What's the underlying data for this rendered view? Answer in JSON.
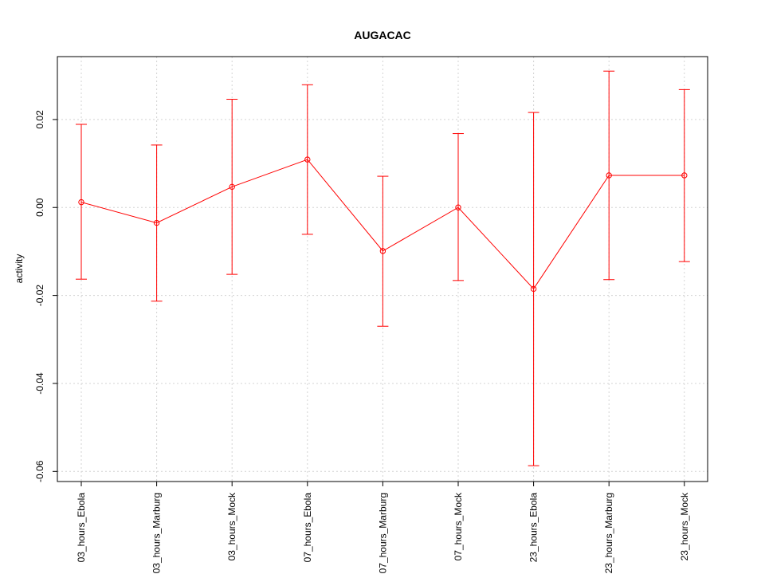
{
  "chart_data": {
    "type": "line",
    "title": "AUGACAC",
    "xlabel": "",
    "ylabel": "activity",
    "categories": [
      "03_hours_Ebola",
      "03_hours_Marburg",
      "03_hours_Mock",
      "07_hours_Ebola",
      "07_hours_Marburg",
      "07_hours_Mock",
      "23_hours_Ebola",
      "23_hours_Marburg",
      "23_hours_Mock"
    ],
    "series": [
      {
        "values": [
          0.0012,
          -0.0035,
          0.0047,
          0.0109,
          -0.0099,
          0.0,
          -0.0185,
          0.0073,
          0.0073
        ],
        "error_upper": [
          0.0189,
          0.0142,
          0.0246,
          0.0279,
          0.0071,
          0.0168,
          0.0216,
          0.031,
          0.0268
        ],
        "error_lower": [
          -0.0163,
          -0.0213,
          -0.0152,
          -0.0061,
          -0.027,
          -0.0166,
          -0.0587,
          -0.0164,
          -0.0123
        ]
      }
    ],
    "ylim": [
      -0.0623,
      0.0343
    ],
    "yticks": [
      -0.06,
      -0.04,
      -0.02,
      0.0,
      0.02
    ],
    "ytick_labels": [
      "-0.06",
      "-0.04",
      "-0.02",
      "0.00",
      "0.02"
    ],
    "grid": true,
    "colors": {
      "series": "#ff0000",
      "grid": "#d3d3d3",
      "axis": "#000000"
    }
  }
}
